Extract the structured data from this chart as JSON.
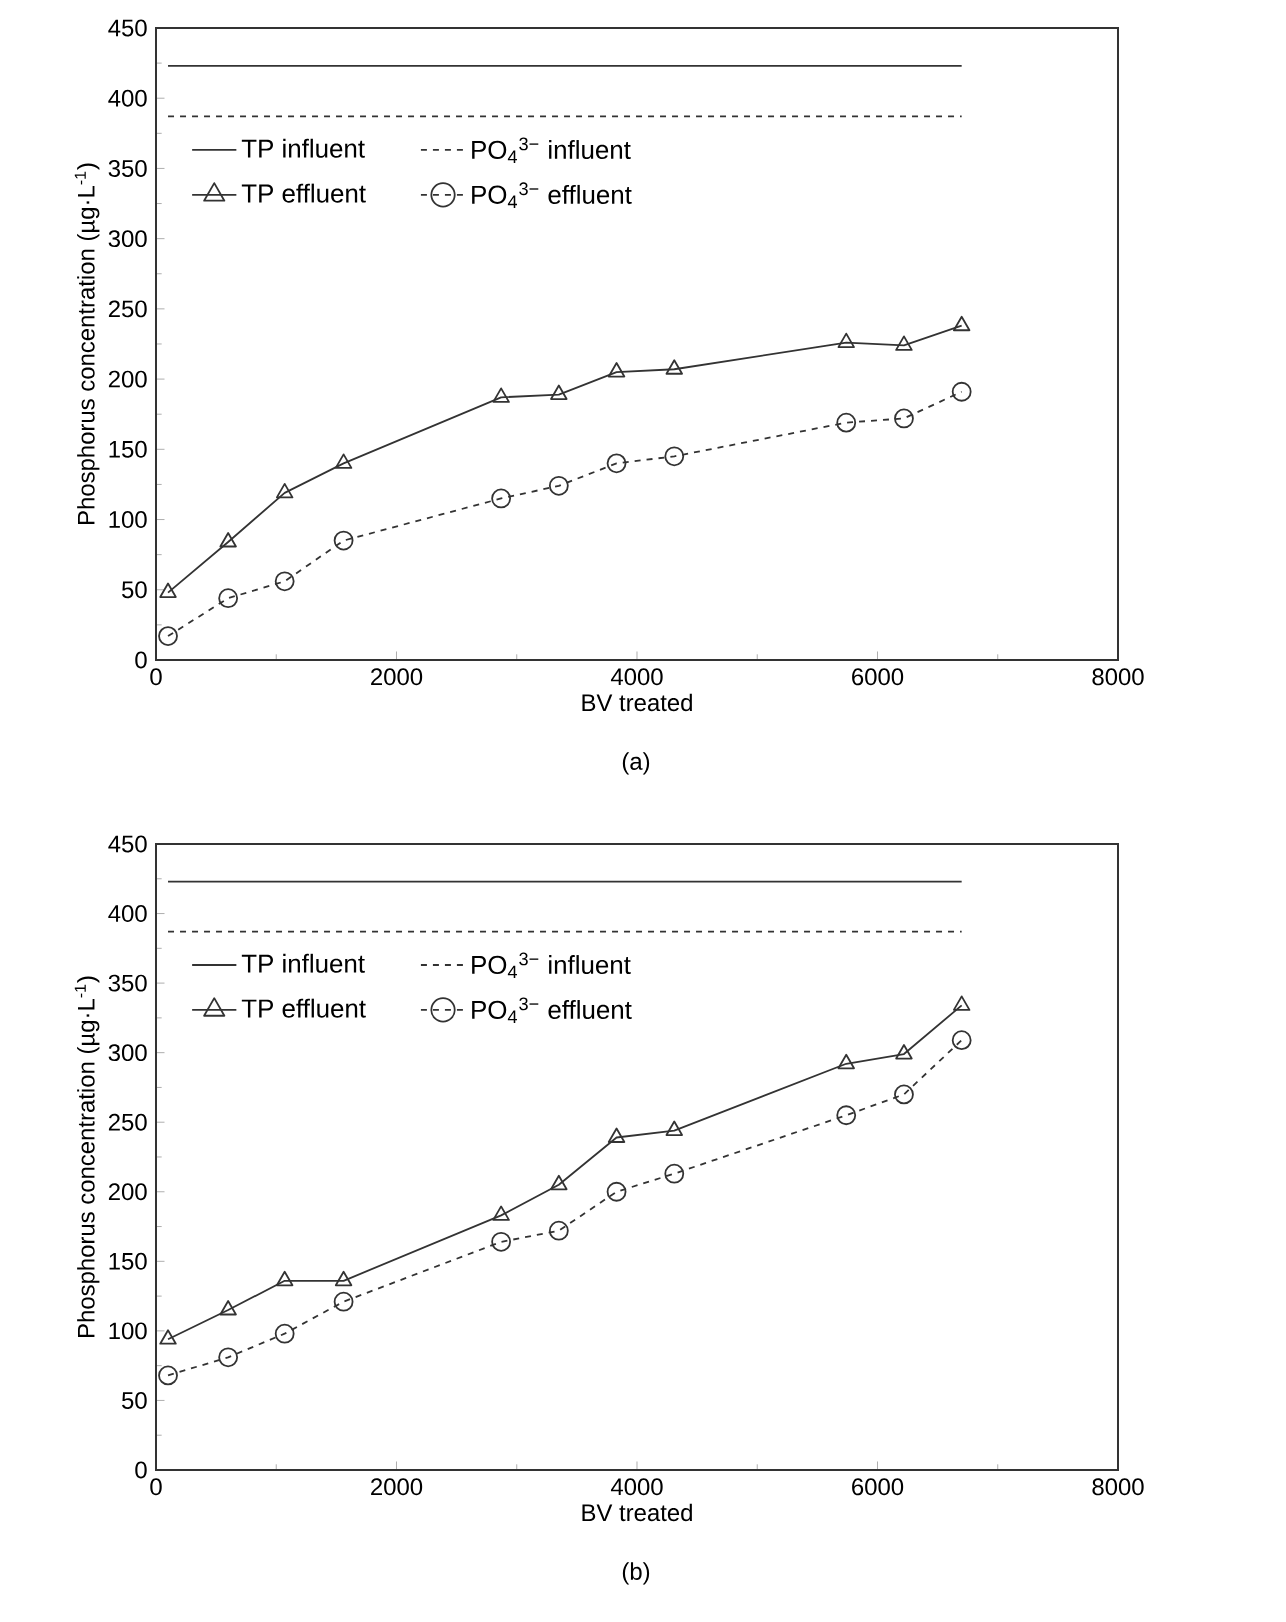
{
  "chart_data": [
    {
      "type": "line",
      "xlabel": "BV treated",
      "ylabel": "Phosphorus concentration (µg·L$^{-1}$)",
      "xlim": [
        0,
        8000
      ],
      "ylim": [
        0,
        450
      ],
      "xticks": [
        0,
        2000,
        4000,
        6000,
        8000
      ],
      "yticks": [
        0,
        50,
        100,
        150,
        200,
        250,
        300,
        350,
        400,
        450
      ],
      "legend": "top left",
      "grid": false,
      "annotations": [
        "(a)"
      ],
      "series": [
        {
          "name": "TP influent",
          "color": "#333333",
          "marker": "none",
          "line_style": "solid",
          "x": [
            100,
            6700
          ],
          "values": [
            423,
            423
          ]
        },
        {
          "name": "PO$_{4}$$^{3−}$ influent",
          "color": "#333333",
          "marker": "none",
          "line_style": "dashed",
          "x": [
            100,
            6700
          ],
          "values": [
            387,
            387
          ]
        },
        {
          "name": "TP effluent",
          "color": "#333333",
          "marker": "triangle",
          "line_style": "solid",
          "x": [
            100,
            600,
            1070,
            1560,
            2870,
            3350,
            3830,
            4310,
            5740,
            6220,
            6700
          ],
          "values": [
            48,
            84,
            119,
            140,
            187,
            189,
            205,
            207,
            226,
            224,
            238
          ]
        },
        {
          "name": "PO$_{4}$$^{3−}$ effluent",
          "color": "#333333",
          "marker": "circle",
          "line_style": "dashed",
          "x": [
            100,
            600,
            1070,
            1560,
            2870,
            3350,
            3830,
            4310,
            5740,
            6220,
            6700
          ],
          "values": [
            17,
            44,
            56,
            85,
            115,
            124,
            140,
            145,
            169,
            172,
            191
          ]
        }
      ]
    },
    {
      "type": "line",
      "xlabel": "BV treated",
      "ylabel": "Phosphorus concentration (µg·L$^{-1}$)",
      "xlim": [
        0,
        8000
      ],
      "ylim": [
        0,
        450
      ],
      "xticks": [
        0,
        2000,
        4000,
        6000,
        8000
      ],
      "yticks": [
        0,
        50,
        100,
        150,
        200,
        250,
        300,
        350,
        400,
        450
      ],
      "legend": "top left",
      "grid": false,
      "annotations": [
        "(b)"
      ],
      "series": [
        {
          "name": "TP influent",
          "color": "#333333",
          "marker": "none",
          "line_style": "solid",
          "x": [
            100,
            6700
          ],
          "values": [
            423,
            423
          ]
        },
        {
          "name": "PO$_{4}$$^{3−}$ influent",
          "color": "#333333",
          "marker": "none",
          "line_style": "dashed",
          "x": [
            100,
            6700
          ],
          "values": [
            387,
            387
          ]
        },
        {
          "name": "TP effluent",
          "color": "#333333",
          "marker": "triangle",
          "line_style": "solid",
          "x": [
            100,
            600,
            1070,
            1560,
            2870,
            3350,
            3830,
            4310,
            5740,
            6220,
            6700
          ],
          "values": [
            94,
            115,
            136,
            136,
            183,
            205,
            239,
            244,
            292,
            299,
            334
          ]
        },
        {
          "name": "PO$_{4}$$^{3−}$ effluent",
          "color": "#333333",
          "marker": "circle",
          "line_style": "dashed",
          "x": [
            100,
            600,
            1070,
            1560,
            2870,
            3350,
            3830,
            4310,
            5740,
            6220,
            6700
          ],
          "values": [
            68,
            81,
            98,
            121,
            164,
            172,
            200,
            213,
            255,
            270,
            309
          ]
        }
      ]
    }
  ]
}
